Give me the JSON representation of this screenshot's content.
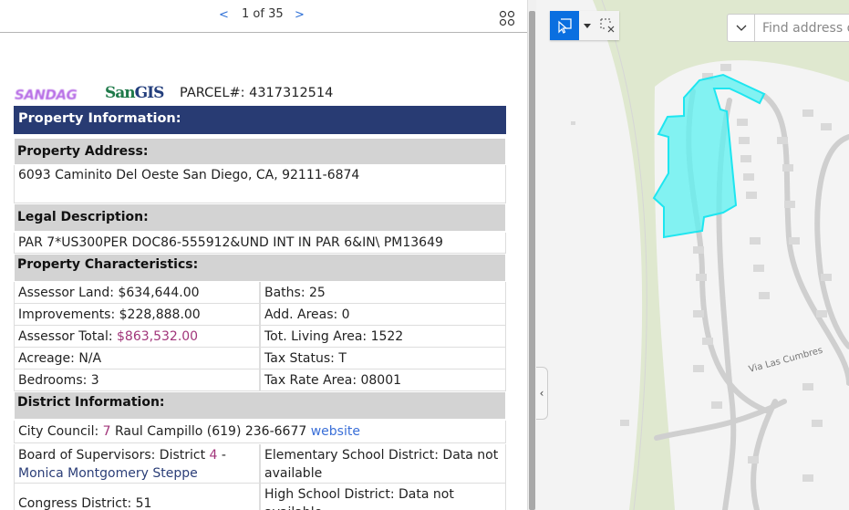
{
  "pager": {
    "prev": "<",
    "text": "1 of 35",
    "next": ">"
  },
  "logos": {
    "sandag": "SANDAG",
    "sangis_san": "San",
    "sangis_gis": "GIS"
  },
  "parcel": "PARCEL#: 4317312514",
  "sections": {
    "property_info": "Property Information:",
    "address_label": "Property Address:",
    "address": "6093 Caminito Del Oeste San Diego, CA, 92111-6874",
    "legal_label": "Legal Description:",
    "legal": "PAR 7*US300PER DOC86-555912&UND INT IN PAR 6&IN\\ PM13649",
    "characteristics_label": "Property Characteristics:",
    "district_label": "District Information:"
  },
  "characteristics": {
    "land_label": "Assessor Land: ",
    "land": "$634,644.00",
    "baths": "Baths: 25",
    "improvements": "Improvements: $228,888.00",
    "add_areas": "Add. Areas: 0",
    "total_label": "Assessor Total: ",
    "total": "$863,532.00",
    "living_area": "Tot. Living Area: 1522",
    "acreage": "Acreage: N/A",
    "tax_status": "Tax Status: T",
    "bedrooms": "Bedrooms: 3",
    "tax_rate_area": "Tax Rate Area: 08001"
  },
  "district": {
    "council_label": "City Council: ",
    "council_num": "7",
    "council_rep": " Raul Campillo (619) 236-6677 ",
    "website": "website",
    "supervisors_label": "Board of Supervisors: District ",
    "supervisors_num": "4",
    " supervisors_dash": " -",
    "supervisors_dash": " -",
    "supervisor_name": "Monica Montgomery Steppe",
    "elementary": "Elementary School District: Data not available",
    "congress": "Congress District: 51",
    "high_school": "High School District:  Data not available"
  },
  "map": {
    "search_placeholder": "Find address or place",
    "street_label": "Via Las Cumbres",
    "highlight_color": "#5cf2f2",
    "select_color": "#0a6fe0"
  }
}
